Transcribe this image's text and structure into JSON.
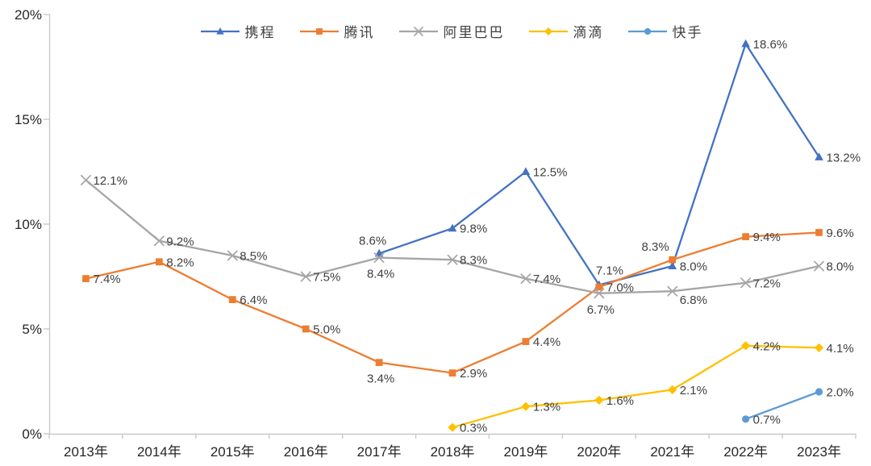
{
  "chart_data": {
    "type": "line",
    "title": "",
    "xlabel": "",
    "ylabel": "",
    "categories": [
      "2013年",
      "2014年",
      "2015年",
      "2016年",
      "2017年",
      "2018年",
      "2019年",
      "2020年",
      "2021年",
      "2022年",
      "2023年"
    ],
    "ylim": [
      0,
      20
    ],
    "yticks": [
      0,
      5,
      10,
      15,
      20
    ],
    "ytick_suffix": "%",
    "grid": false,
    "legend_position": "top-center",
    "data_labels_shown": true,
    "axis_color": "#c9c9c9",
    "label_color": "#404040",
    "tick_label_color": "#262626",
    "series": [
      {
        "name": "携程",
        "color": "#4472C4",
        "marker": "triangle",
        "values": [
          null,
          null,
          null,
          null,
          8.6,
          9.8,
          12.5,
          7.1,
          8.0,
          18.6,
          13.2
        ],
        "label_pos": [
          null,
          null,
          null,
          null,
          "a",
          "r",
          "r",
          "ar",
          "r",
          "r",
          "r"
        ]
      },
      {
        "name": "腾讯",
        "color": "#ED7D31",
        "marker": "square",
        "values": [
          7.4,
          8.2,
          6.4,
          5.0,
          3.4,
          2.9,
          4.4,
          7.0,
          8.3,
          9.4,
          9.6
        ],
        "label_pos": [
          "r",
          "r",
          "r",
          "r",
          "b",
          "r",
          "r",
          "r",
          "al",
          "r",
          "r"
        ]
      },
      {
        "name": "阿里巴巴",
        "color": "#A5A5A5",
        "marker": "x",
        "values": [
          12.1,
          9.2,
          8.5,
          7.5,
          8.4,
          8.3,
          7.4,
          6.7,
          6.8,
          7.2,
          8.0
        ],
        "label_pos": [
          "r",
          "r",
          "r",
          "r",
          "b",
          "r",
          "r",
          "b",
          "br",
          "r",
          "r"
        ]
      },
      {
        "name": "滴滴",
        "color": "#FFC000",
        "marker": "diamond",
        "values": [
          null,
          null,
          null,
          null,
          null,
          0.3,
          1.3,
          1.6,
          2.1,
          4.2,
          4.1
        ],
        "label_pos": [
          null,
          null,
          null,
          null,
          null,
          "r",
          "r",
          "r",
          "r",
          "r",
          "r"
        ]
      },
      {
        "name": "快手",
        "color": "#5B9BD5",
        "marker": "circle",
        "values": [
          null,
          null,
          null,
          null,
          null,
          null,
          null,
          null,
          null,
          0.7,
          2.0
        ],
        "label_pos": [
          null,
          null,
          null,
          null,
          null,
          null,
          null,
          null,
          null,
          "r",
          "r"
        ]
      }
    ]
  }
}
